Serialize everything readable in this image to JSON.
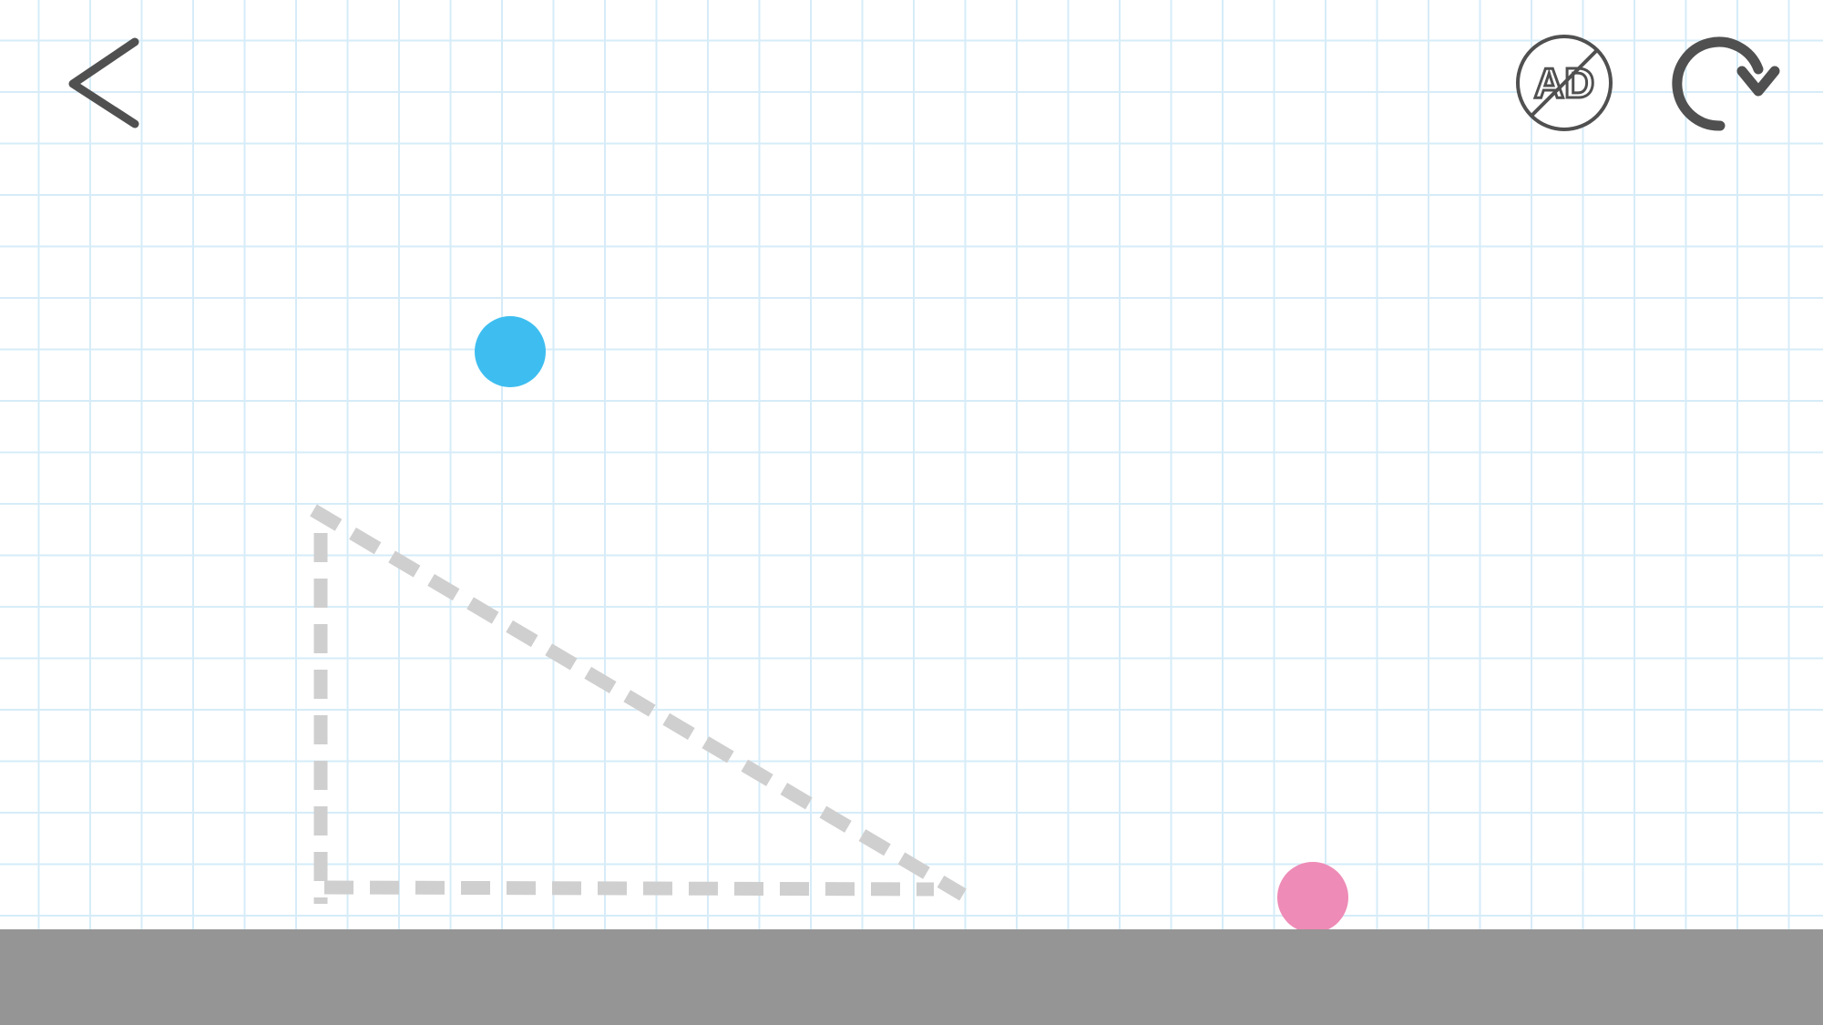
{
  "colors": {
    "background": "#ffffff",
    "grid_line": "#d6ecf8",
    "ground": "#959595",
    "icon_stroke": "#505050",
    "dashed_outline": "#cfcfcf",
    "blue_ball": "#3ebef0",
    "pink_ball": "#ee8bb6"
  },
  "toolbar": {
    "back_icon": "chevron-left-icon",
    "no_ads_icon": "no-ads-icon",
    "no_ads_label": "AD",
    "restart_icon": "restart-icon"
  },
  "level": {
    "hint_shape": "dashed-right-triangle",
    "balls": [
      {
        "name": "blue-ball",
        "color": "#3ebef0"
      },
      {
        "name": "pink-ball",
        "color": "#ee8bb6"
      }
    ]
  }
}
